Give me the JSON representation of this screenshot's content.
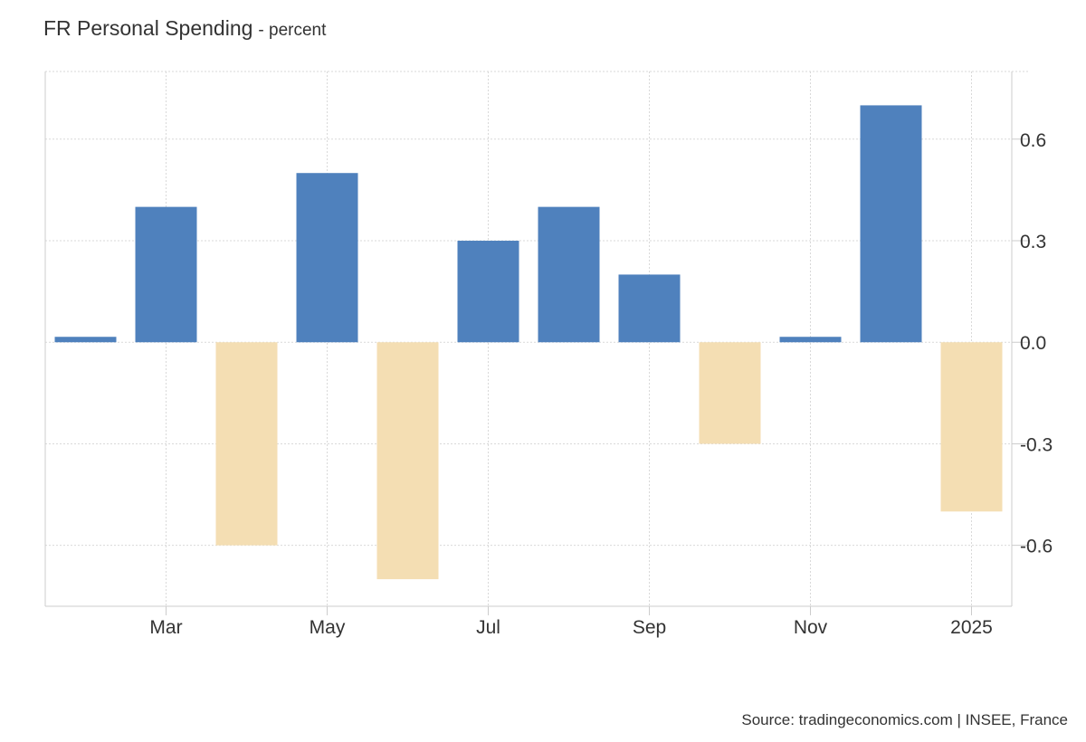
{
  "header": {
    "title": "FR Personal Spending",
    "unit": "- percent"
  },
  "footer": {
    "source": "Source: tradingeconomics.com | INSEE, France"
  },
  "colors": {
    "positive": "#4f81bd",
    "negative": "#f4deb3",
    "grid": "#d9d9d9",
    "axis": "#cccccc"
  },
  "chart_data": {
    "type": "bar",
    "categories": [
      "2024-02",
      "2024-03",
      "2024-04",
      "2024-05",
      "2024-06",
      "2024-07",
      "2024-08",
      "2024-09",
      "2024-10",
      "2024-11",
      "2024-12",
      "2025-01"
    ],
    "values": [
      0.0,
      0.4,
      -0.6,
      0.5,
      -0.7,
      0.3,
      0.4,
      0.2,
      -0.3,
      0.0,
      0.7,
      -0.5
    ],
    "x_tick_labels": [
      "Mar",
      "May",
      "Jul",
      "Sep",
      "Nov",
      "2025"
    ],
    "y_ticks": [
      0.6,
      0.3,
      0.0,
      -0.3,
      -0.6
    ],
    "y_tick_labels": [
      "0.6",
      "0.3",
      "0.0",
      "-0.3",
      "-0.6"
    ],
    "ylim": [
      -0.78,
      0.8
    ],
    "grid": true,
    "y_axis_position": "right",
    "title": "FR Personal Spending",
    "xlabel": "",
    "ylabel": ""
  }
}
